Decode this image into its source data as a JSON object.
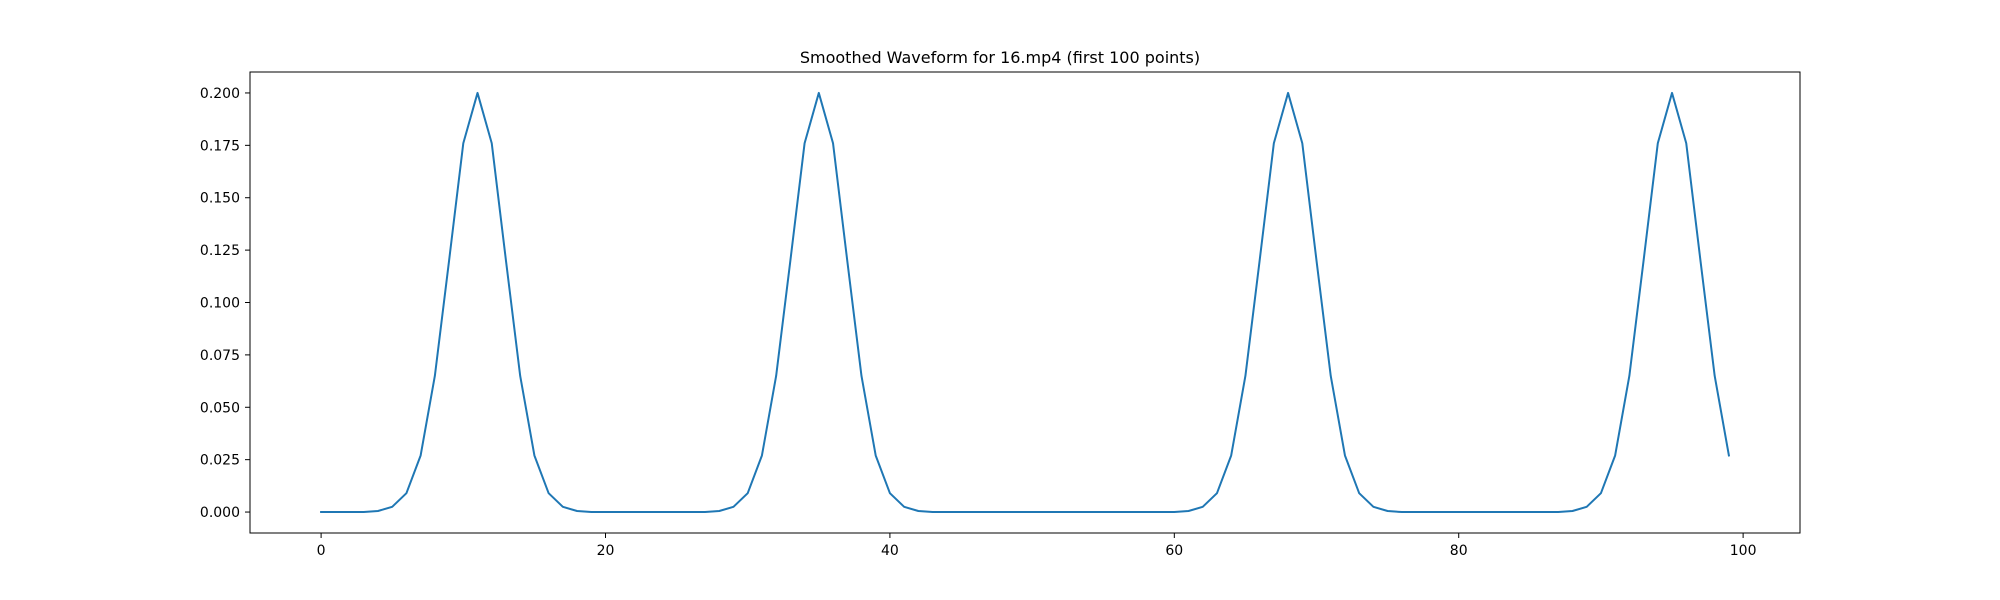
{
  "chart_data": {
    "type": "line",
    "title": "Smoothed Waveform for 16.mp4 (first 100 points)",
    "xlabel": "",
    "ylabel": "",
    "xlim": [
      -5,
      104
    ],
    "ylim": [
      -0.01,
      0.21
    ],
    "xticks": [
      0,
      20,
      40,
      60,
      80,
      100
    ],
    "xtick_labels": [
      "0",
      "20",
      "40",
      "60",
      "80",
      "100"
    ],
    "yticks": [
      0.0,
      0.025,
      0.05,
      0.075,
      0.1,
      0.125,
      0.15,
      0.175,
      0.2
    ],
    "ytick_labels": [
      "0.000",
      "0.025",
      "0.050",
      "0.075",
      "0.100",
      "0.125",
      "0.150",
      "0.175",
      "0.200"
    ],
    "grid": false,
    "legend": "none",
    "series_color": "#1f77b4",
    "series": [
      {
        "x": [
          0,
          1,
          2,
          3,
          4,
          5,
          6,
          7,
          8,
          9,
          10,
          11,
          12,
          13,
          14,
          15,
          16,
          17,
          18,
          19,
          20,
          21,
          22,
          23,
          24,
          25,
          26,
          27,
          28,
          29,
          30,
          31,
          32,
          33,
          34,
          35,
          36,
          37,
          38,
          39,
          40,
          41,
          42,
          43,
          44,
          45,
          46,
          47,
          48,
          49,
          50,
          51,
          52,
          53,
          54,
          55,
          56,
          57,
          58,
          59,
          60,
          61,
          62,
          63,
          64,
          65,
          66,
          67,
          68,
          69,
          70,
          71,
          72,
          73,
          74,
          75,
          76,
          77,
          78,
          79,
          80,
          81,
          82,
          83,
          84,
          85,
          86,
          87,
          88,
          89,
          90,
          91,
          92,
          93,
          94,
          95,
          96,
          97,
          98,
          99
        ],
        "values": [
          0.0,
          0.0,
          0.0,
          0.0,
          0.0005,
          0.0025,
          0.009,
          0.027,
          0.065,
          0.12,
          0.176,
          0.2,
          0.176,
          0.12,
          0.065,
          0.027,
          0.009,
          0.0025,
          0.0005,
          0.0,
          0.0,
          0.0,
          0.0,
          0.0,
          0.0,
          0.0,
          0.0,
          0.0,
          0.0005,
          0.0025,
          0.009,
          0.027,
          0.065,
          0.12,
          0.176,
          0.2,
          0.176,
          0.12,
          0.065,
          0.027,
          0.009,
          0.0025,
          0.0005,
          0.0,
          0.0,
          0.0,
          0.0,
          0.0,
          0.0,
          0.0,
          0.0,
          0.0,
          0.0,
          0.0,
          0.0,
          0.0,
          0.0,
          0.0,
          0.0,
          0.0,
          0.0,
          0.0005,
          0.0025,
          0.009,
          0.027,
          0.065,
          0.12,
          0.176,
          0.2,
          0.176,
          0.12,
          0.065,
          0.027,
          0.009,
          0.0025,
          0.0005,
          0.0,
          0.0,
          0.0,
          0.0,
          0.0,
          0.0,
          0.0,
          0.0,
          0.0,
          0.0,
          0.0,
          0.0,
          0.0005,
          0.0025,
          0.009,
          0.027,
          0.065,
          0.12,
          0.176,
          0.2,
          0.176,
          0.12,
          0.065,
          0.027
        ]
      }
    ]
  }
}
